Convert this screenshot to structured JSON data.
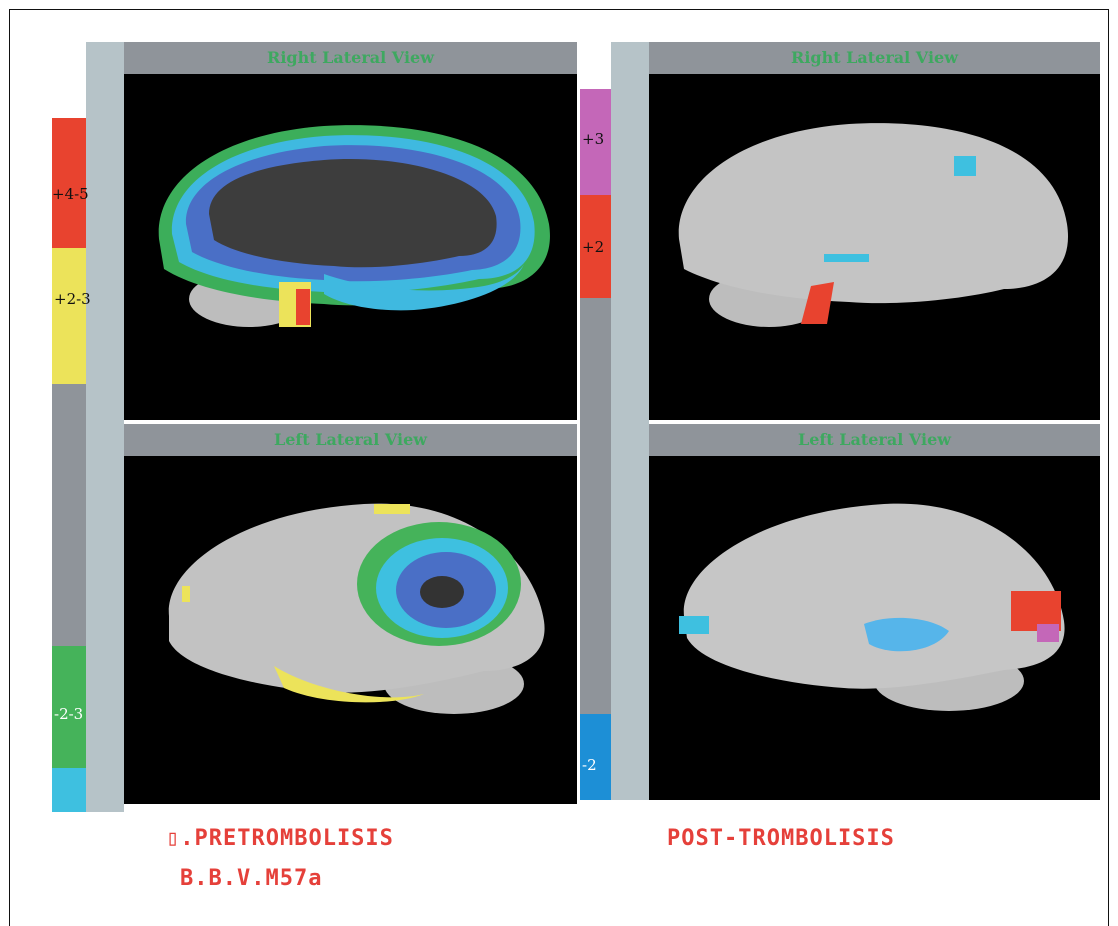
{
  "left_group": {
    "top_title": "Right Lateral View",
    "bottom_title": "Left Lateral View",
    "scale_labels": [
      "+4-5",
      "+2-3",
      "-2-3"
    ],
    "caption_line1": "▯.PRETROMBOLISIS",
    "caption_line2": "B.B.V.M57a"
  },
  "right_group": {
    "top_title": "Right Lateral View",
    "bottom_title": "Left Lateral View",
    "scale_labels": [
      "+3",
      "+2",
      "-2"
    ],
    "caption": "POST-TROMBOLISIS"
  },
  "colors": {
    "red": "#e8432f",
    "yellow": "#ece35a",
    "gray": "#8f949a",
    "green": "#45b35a",
    "cyan": "#3ec0e0",
    "magenta": "#c467b8",
    "blue": "#1d8fd6",
    "title_text": "#3ea860",
    "caption_text": "#e5403a"
  }
}
